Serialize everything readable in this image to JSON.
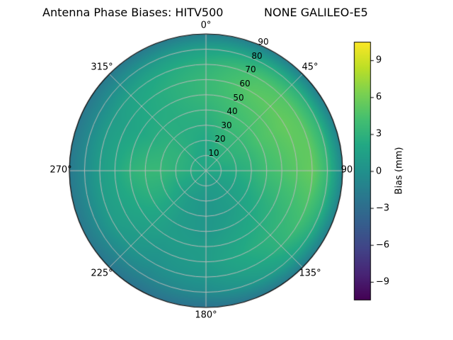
{
  "header": {
    "title_left": "Antenna Phase Biases: HITV500",
    "title_right": "NONE GALILEO-E5"
  },
  "chart_data": {
    "type": "heatmap",
    "projection": "polar",
    "title": "Antenna Phase Biases: HITV500        NONE GALILEO-E5",
    "theta_direction": "clockwise",
    "theta_zero_location": "top",
    "theta_ticks_deg": [
      0,
      45,
      90,
      135,
      180,
      225,
      270,
      315
    ],
    "theta_tick_labels": [
      "0°",
      "45°",
      "90",
      "135°",
      "180°",
      "225°",
      "270°",
      "315°"
    ],
    "r_ticks": [
      10,
      20,
      30,
      40,
      50,
      60,
      70,
      80,
      90
    ],
    "r_max": 90,
    "r_label_angle_deg": 24,
    "theta_bins_deg": [
      0,
      30,
      60,
      90,
      120,
      150,
      180,
      210,
      240,
      270,
      300,
      330
    ],
    "r_bins": [
      0,
      10,
      20,
      30,
      40,
      50,
      60,
      70,
      80,
      90
    ],
    "values_bias_mm": [
      [
        2.0,
        2.0,
        2.0,
        2.5,
        3.0,
        3.5,
        3.5,
        3.0,
        1.5,
        -1.5
      ],
      [
        2.0,
        2.5,
        3.0,
        3.5,
        4.0,
        4.5,
        5.0,
        4.5,
        2.5,
        -1.5
      ],
      [
        2.0,
        2.5,
        3.0,
        3.5,
        4.5,
        5.0,
        5.5,
        5.0,
        3.0,
        -1.5
      ],
      [
        2.0,
        2.0,
        2.5,
        3.0,
        4.0,
        4.5,
        5.0,
        5.5,
        3.5,
        -1.0
      ],
      [
        2.0,
        1.5,
        1.5,
        2.0,
        2.5,
        3.0,
        3.5,
        4.0,
        2.5,
        -1.5
      ],
      [
        2.0,
        1.0,
        1.0,
        1.0,
        1.5,
        2.0,
        2.5,
        2.0,
        1.0,
        -2.0
      ],
      [
        2.0,
        1.0,
        0.5,
        0.5,
        0.5,
        1.0,
        1.0,
        0.5,
        -0.5,
        -2.5
      ],
      [
        2.0,
        1.5,
        1.0,
        1.0,
        1.0,
        1.0,
        0.5,
        0.0,
        -1.0,
        -2.5
      ],
      [
        2.0,
        2.0,
        2.0,
        2.5,
        2.5,
        2.0,
        1.5,
        1.0,
        -0.5,
        -2.0
      ],
      [
        2.0,
        2.5,
        3.0,
        3.5,
        3.5,
        3.0,
        2.0,
        1.0,
        -0.5,
        -2.0
      ],
      [
        2.0,
        2.5,
        3.0,
        3.0,
        2.5,
        2.0,
        1.5,
        1.0,
        -0.5,
        -2.0
      ],
      [
        2.0,
        2.0,
        2.5,
        2.5,
        2.5,
        2.5,
        2.5,
        2.0,
        0.5,
        -2.0
      ]
    ],
    "colorbar": {
      "label": "Bias (mm)",
      "ticks": [
        9,
        6,
        3,
        0,
        -3,
        -6,
        -9
      ],
      "tick_labels": [
        "9",
        "6",
        "3",
        "0",
        "−3",
        "−6",
        "−9"
      ],
      "vmin": -10.5,
      "vmax": 10.5
    },
    "colormap": {
      "name": "viridis",
      "stops": [
        "#440154",
        "#482475",
        "#414487",
        "#355f8d",
        "#2a788e",
        "#21918c",
        "#22a884",
        "#44bf70",
        "#7ad151",
        "#bddf26",
        "#fde725"
      ]
    },
    "grid_color": "#b9b9b9",
    "outline_color": "#000000",
    "background": "#ffffff",
    "text_color": "#000000"
  }
}
